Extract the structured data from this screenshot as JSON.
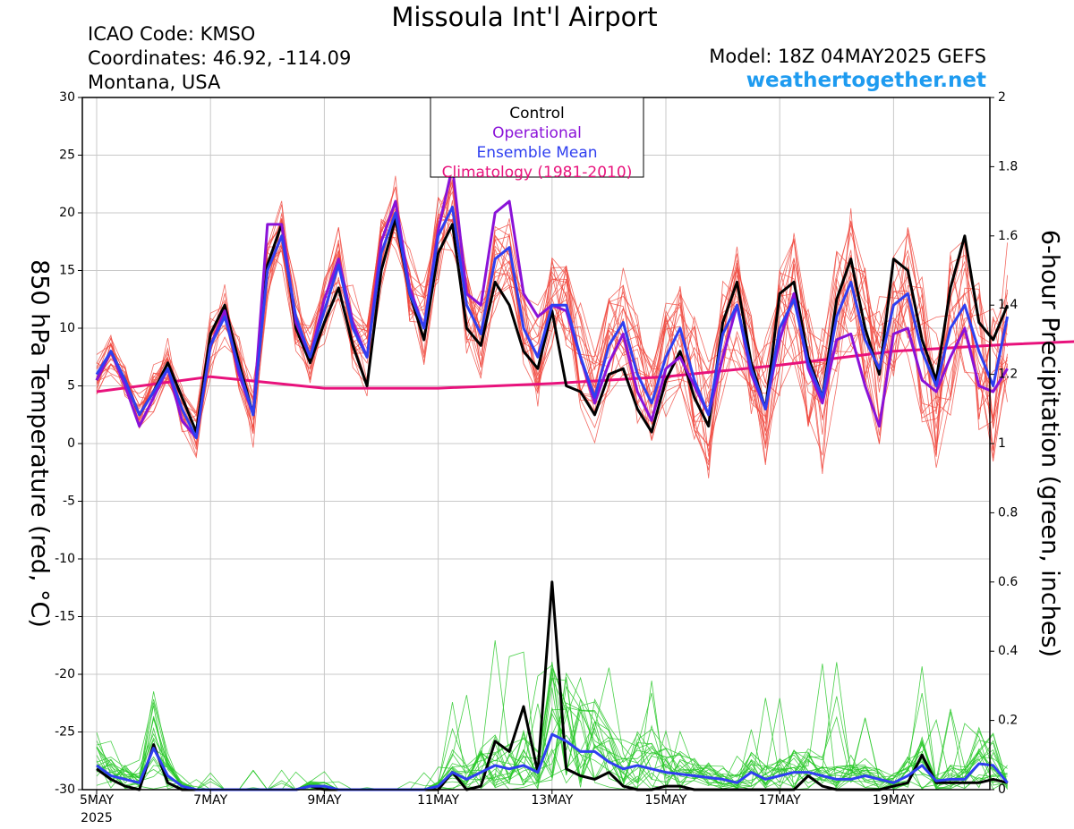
{
  "header": {
    "title": "Missoula Int'l Airport",
    "icao": "ICAO Code: KMSO",
    "coordinates": "Coordinates: 46.92, -114.09",
    "region": "Montana, USA",
    "model": "Model: 18Z 04MAY2025 GEFS",
    "site": "weathertogether.net"
  },
  "colors": {
    "control": "#000000",
    "operational": "#8a12d8",
    "ensemble_mean": "#2f3ff0",
    "climatology": "#e8127c",
    "members_temp": "#f0463c",
    "members_precip": "#28c828",
    "site": "#1e9bf0"
  },
  "chart_data": {
    "type": "line",
    "ylabel": "850 hPa Temperature (red, °C)",
    "y2label": "6-hour Precipitation (green, inches)",
    "ylim": [
      -30,
      30
    ],
    "y2lim": [
      0,
      2
    ],
    "yticks": [
      "30",
      "25",
      "20",
      "15",
      "10",
      "5",
      "0",
      "-5",
      "-10",
      "-15",
      "-20",
      "-25",
      "-30"
    ],
    "y2ticks": [
      "2",
      "1.8",
      "1.6",
      "1.4",
      "1.2",
      "1",
      "0.8",
      "0.6",
      "0.4",
      "0.2",
      "0"
    ],
    "xlabels": [
      "5MAY",
      "7MAY",
      "9MAY",
      "11MAY",
      "13MAY",
      "15MAY",
      "17MAY",
      "19MAY"
    ],
    "xlabel_sub": "2025",
    "x_start": "2025-05-05 00Z",
    "step_hours": 6,
    "legend": {
      "placement": "top-center",
      "entries": [
        "Control",
        "Operational",
        "Ensemble Mean",
        "Climatology (1981-2010)"
      ]
    },
    "series": [
      {
        "name": "Control",
        "axis": "temperature",
        "values": [
          5.5,
          8.0,
          5.5,
          2.5,
          4.5,
          7.0,
          4.0,
          1.0,
          9.5,
          12.0,
          7.0,
          2.5,
          15.5,
          19.0,
          10.0,
          7.0,
          10.5,
          13.5,
          8.5,
          5.0,
          15.0,
          19.5,
          13.0,
          9.0,
          16.5,
          19.0,
          10.0,
          8.5,
          14.0,
          12.0,
          8.0,
          6.5,
          11.5,
          5.0,
          4.5,
          2.5,
          6.0,
          6.5,
          3.0,
          1.0,
          5.5,
          8.0,
          4.0,
          1.5,
          10.5,
          14.0,
          7.0,
          3.0,
          13.0,
          14.0,
          7.5,
          4.0,
          12.5,
          16.0,
          10.0,
          6.0,
          16.0,
          15.0,
          9.0,
          5.5,
          13.5,
          18.0,
          10.5,
          9.0,
          12.0
        ]
      },
      {
        "name": "Operational",
        "axis": "temperature",
        "values": [
          5.5,
          8.0,
          5.0,
          1.5,
          4.0,
          6.5,
          2.0,
          0.5,
          8.5,
          11.5,
          6.0,
          2.5,
          19.0,
          19.0,
          10.5,
          7.5,
          12.5,
          16.0,
          10.5,
          7.5,
          17.5,
          21.0,
          13.5,
          10.0,
          18.5,
          24.0,
          13.0,
          12.0,
          20.0,
          21.0,
          13.0,
          11.0,
          12.0,
          11.5,
          7.5,
          3.5,
          7.0,
          9.5,
          4.5,
          2.0,
          6.5,
          7.5,
          5.0,
          2.5,
          7.5,
          12.0,
          6.0,
          3.0,
          9.0,
          13.0,
          6.5,
          3.5,
          9.0,
          9.5,
          5.0,
          1.5,
          9.5,
          10.0,
          5.5,
          4.5,
          7.5,
          10.0,
          5.0,
          4.5,
          6.5
        ]
      },
      {
        "name": "Ensemble Mean",
        "axis": "temperature",
        "values": [
          6.0,
          8.0,
          5.5,
          2.5,
          4.5,
          6.5,
          3.0,
          0.5,
          8.5,
          11.0,
          6.5,
          2.5,
          15.0,
          18.0,
          11.0,
          7.5,
          11.5,
          15.5,
          10.0,
          7.5,
          16.5,
          20.0,
          13.0,
          10.0,
          18.0,
          20.5,
          12.0,
          9.5,
          16.0,
          17.0,
          10.0,
          7.5,
          12.0,
          12.0,
          7.5,
          4.0,
          8.5,
          10.5,
          6.0,
          3.5,
          7.5,
          10.0,
          5.5,
          2.5,
          9.5,
          12.0,
          6.5,
          3.0,
          10.0,
          12.5,
          7.0,
          4.0,
          11.0,
          14.0,
          9.0,
          6.5,
          12.0,
          13.0,
          8.0,
          5.0,
          10.0,
          12.0,
          8.0,
          5.0,
          11.0
        ]
      },
      {
        "name": "Climatology (1981-2010)",
        "axis": "temperature",
        "x_hours": [
          0,
          48,
          96,
          144,
          192,
          240,
          288,
          336,
          384,
          432,
          480
        ],
        "values": [
          4.5,
          5.8,
          4.8,
          4.8,
          5.2,
          5.8,
          6.8,
          8.0,
          8.6,
          9.0,
          8.6
        ]
      },
      {
        "name": "Control precipitation",
        "axis": "precipitation",
        "values": [
          0.06,
          0.03,
          0.01,
          0,
          0.13,
          0.02,
          0,
          0,
          0,
          0,
          0,
          0,
          0,
          0,
          0,
          0.01,
          0,
          0,
          0,
          0,
          0,
          0,
          0,
          0,
          0,
          0.05,
          0,
          0.01,
          0.14,
          0.11,
          0.24,
          0.05,
          0.6,
          0.06,
          0.04,
          0.03,
          0.05,
          0.01,
          0,
          0,
          0.01,
          0.01,
          0,
          0,
          0,
          0,
          0,
          0,
          0,
          0,
          0.04,
          0.01,
          0,
          0,
          0,
          0,
          0.01,
          0.02,
          0.1,
          0.02,
          0.02,
          0.02,
          0.02,
          0.03,
          0.02
        ]
      },
      {
        "name": "Ensemble Mean precipitation",
        "axis": "precipitation",
        "values": [
          0.07,
          0.04,
          0.03,
          0.02,
          0.12,
          0.04,
          0.01,
          0,
          0,
          0,
          0,
          0,
          0,
          0,
          0,
          0.01,
          0.01,
          0,
          0,
          0,
          0,
          0,
          0,
          0,
          0.01,
          0.05,
          0.03,
          0.05,
          0.07,
          0.06,
          0.07,
          0.05,
          0.16,
          0.14,
          0.11,
          0.11,
          0.08,
          0.06,
          0.07,
          0.06,
          0.05,
          0.045,
          0.04,
          0.035,
          0.03,
          0.02,
          0.05,
          0.03,
          0.04,
          0.05,
          0.05,
          0.04,
          0.03,
          0.03,
          0.04,
          0.03,
          0.02,
          0.04,
          0.07,
          0.025,
          0.03,
          0.03,
          0.075,
          0.07,
          0.02
        ]
      }
    ]
  }
}
